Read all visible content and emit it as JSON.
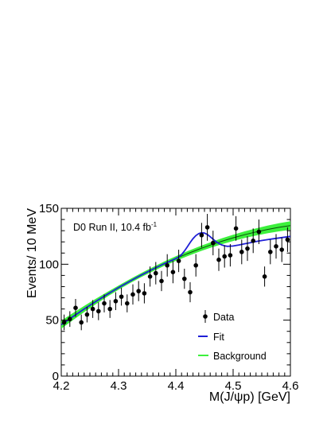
{
  "chart_data": {
    "type": "scatter",
    "annotation": "D0 Run II, 10.4 fb",
    "annotation_sup": "-1",
    "xlabel": "M(J/ψp) [GeV]",
    "ylabel": "Events/ 10 MeV",
    "xlim": [
      4.2,
      4.6
    ],
    "ylim": [
      0,
      150
    ],
    "x_ticks": [
      "4.2",
      "4.3",
      "4.4",
      "4.5",
      "4.6"
    ],
    "y_ticks": [
      "0",
      "50",
      "100",
      "150"
    ],
    "grid": false,
    "legend_position": "bottom-right",
    "legend": {
      "data": "Data",
      "fit": "Fit",
      "background": "Background"
    },
    "colors": {
      "data": "#000000",
      "fit": "#1f1fd6",
      "background": "#3cf03c",
      "background_line": "#0a4a0a"
    },
    "series": [
      {
        "name": "Data",
        "x": [
          4.205,
          4.215,
          4.225,
          4.235,
          4.245,
          4.255,
          4.265,
          4.275,
          4.285,
          4.295,
          4.305,
          4.315,
          4.325,
          4.335,
          4.345,
          4.355,
          4.365,
          4.375,
          4.385,
          4.395,
          4.405,
          4.415,
          4.425,
          4.435,
          4.445,
          4.455,
          4.465,
          4.475,
          4.485,
          4.495,
          4.505,
          4.515,
          4.525,
          4.535,
          4.545,
          4.555,
          4.565,
          4.575,
          4.585,
          4.595
        ],
        "y": [
          48,
          51,
          61,
          48,
          55,
          60,
          58,
          65,
          60,
          67,
          71,
          65,
          73,
          76,
          74,
          89,
          92,
          85,
          99,
          93,
          103,
          87,
          75,
          99,
          126,
          133,
          119,
          104,
          107,
          108,
          132,
          111,
          114,
          121,
          129,
          89,
          111,
          116,
          113,
          122
        ],
        "err": [
          7,
          7,
          8,
          7,
          7,
          8,
          8,
          8,
          8,
          8,
          8,
          8,
          9,
          9,
          9,
          9,
          10,
          9,
          10,
          10,
          10,
          9,
          9,
          10,
          11,
          12,
          11,
          10,
          10,
          10,
          11,
          11,
          11,
          11,
          11,
          9,
          11,
          11,
          11,
          11
        ]
      },
      {
        "name": "Fit",
        "x": [
          4.2,
          4.21,
          4.22,
          4.23,
          4.24,
          4.25,
          4.26,
          4.27,
          4.28,
          4.29,
          4.3,
          4.31,
          4.32,
          4.33,
          4.34,
          4.35,
          4.36,
          4.37,
          4.38,
          4.39,
          4.4,
          4.405,
          4.41,
          4.415,
          4.42,
          4.425,
          4.43,
          4.435,
          4.44,
          4.445,
          4.45,
          4.455,
          4.46,
          4.465,
          4.47,
          4.475,
          4.48,
          4.485,
          4.49,
          4.5,
          4.51,
          4.52,
          4.53,
          4.54,
          4.55,
          4.56,
          4.57,
          4.58,
          4.59,
          4.6
        ],
        "y": [
          46,
          49.5,
          53,
          56.5,
          60,
          63.3,
          66.6,
          69.8,
          73,
          76.1,
          79.1,
          82,
          84.9,
          87.7,
          90.4,
          93,
          95.6,
          98.1,
          100.5,
          102.8,
          105.1,
          106.5,
          108.6,
          111.8,
          115.5,
          119.4,
          122.9,
          125.6,
          127.4,
          128.2,
          127.9,
          126.6,
          124.6,
          122.4,
          120.3,
          118.6,
          117.3,
          116.5,
          116,
          116.3,
          117.2,
          118.3,
          119.3,
          120.3,
          121.2,
          122,
          122.8,
          123.5,
          124.2,
          124.9
        ]
      },
      {
        "name": "Background",
        "x": [
          4.2,
          4.22,
          4.24,
          4.26,
          4.28,
          4.3,
          4.32,
          4.34,
          4.36,
          4.38,
          4.4,
          4.42,
          4.44,
          4.46,
          4.48,
          4.5,
          4.52,
          4.54,
          4.56,
          4.58,
          4.6
        ],
        "y": [
          46,
          53,
          60,
          66.6,
          73,
          79.1,
          84.9,
          90.4,
          95.6,
          100.5,
          105.1,
          109.4,
          113.4,
          117.1,
          120.5,
          123.6,
          126.4,
          128.9,
          131.1,
          133,
          134.6
        ],
        "band_halfwidth": [
          3.6,
          3.2,
          2.8,
          2.4,
          2.1,
          1.9,
          1.8,
          1.8,
          1.9,
          2,
          2.1,
          2.2,
          2.3,
          2.4,
          2.6,
          2.8,
          3,
          3.2,
          3.4,
          3.6,
          3.8
        ]
      }
    ]
  }
}
